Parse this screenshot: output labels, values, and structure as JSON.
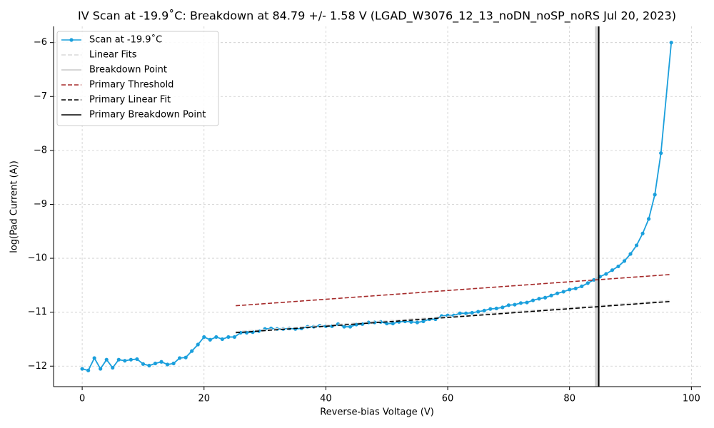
{
  "chart_data": {
    "type": "line",
    "title": "IV Scan at -19.9˚C: Breakdown at 84.79 +/- 1.58 V (LGAD_W3076_12_13_noDN_noSP_noRS Jul 20, 2023)",
    "x_label": "Reverse-bias Voltage (V)",
    "y_label": "log(Pad Current (A))",
    "xlim": [
      -4.7,
      101.6
    ],
    "ylim": [
      -12.38,
      -5.7
    ],
    "xticks": [
      0,
      20,
      40,
      60,
      80,
      100
    ],
    "yticks": [
      {
        "value": -12,
        "label": "−12"
      },
      {
        "value": -11,
        "label": "−11"
      },
      {
        "value": -10,
        "label": "−10"
      },
      {
        "value": -9,
        "label": "−9"
      },
      {
        "value": -8,
        "label": "−8"
      },
      {
        "value": -7,
        "label": "−7"
      },
      {
        "value": -6,
        "label": "−6"
      }
    ],
    "grid": true,
    "legend": "upper left",
    "series": [
      {
        "name": "Scan at -19.9˚C",
        "color": "#1a9fdc",
        "style": "line-marker",
        "x": [
          0,
          1,
          2,
          3,
          4,
          5,
          6,
          7,
          8,
          9,
          10,
          11,
          12,
          13,
          14,
          15,
          16,
          17,
          18,
          19,
          20,
          21,
          22,
          23,
          24,
          25,
          26,
          27,
          28,
          29,
          30,
          31,
          32,
          33,
          34,
          35,
          36,
          37,
          38,
          39,
          40,
          41,
          42,
          43,
          44,
          45,
          46,
          47,
          48,
          49,
          50,
          51,
          52,
          53,
          54,
          55,
          56,
          57,
          58,
          59,
          60,
          61,
          62,
          63,
          64,
          65,
          66,
          67,
          68,
          69,
          70,
          71,
          72,
          73,
          74,
          75,
          76,
          77,
          78,
          79,
          80,
          81,
          82,
          83,
          84,
          85,
          86,
          87,
          88,
          89,
          90,
          91,
          92,
          93,
          94,
          95,
          96.7
        ],
        "values": [
          -12.05,
          -12.08,
          -11.85,
          -12.05,
          -11.88,
          -12.03,
          -11.88,
          -11.9,
          -11.88,
          -11.87,
          -11.96,
          -11.99,
          -11.95,
          -11.92,
          -11.97,
          -11.95,
          -11.85,
          -11.84,
          -11.72,
          -11.6,
          -11.46,
          -11.51,
          -11.46,
          -11.5,
          -11.46,
          -11.46,
          -11.38,
          -11.38,
          -11.37,
          -11.35,
          -11.31,
          -11.3,
          -11.31,
          -11.31,
          -11.3,
          -11.31,
          -11.3,
          -11.27,
          -11.27,
          -11.25,
          -11.26,
          -11.26,
          -11.22,
          -11.27,
          -11.27,
          -11.23,
          -11.22,
          -11.19,
          -11.19,
          -11.18,
          -11.21,
          -11.21,
          -11.18,
          -11.17,
          -11.18,
          -11.19,
          -11.17,
          -11.13,
          -11.13,
          -11.07,
          -11.06,
          -11.06,
          -11.02,
          -11.02,
          -11.01,
          -10.99,
          -10.97,
          -10.94,
          -10.93,
          -10.91,
          -10.87,
          -10.86,
          -10.83,
          -10.82,
          -10.78,
          -10.75,
          -10.73,
          -10.69,
          -10.65,
          -10.62,
          -10.58,
          -10.56,
          -10.52,
          -10.46,
          -10.4,
          -10.34,
          -10.29,
          -10.22,
          -10.15,
          -10.05,
          -9.92,
          -9.76,
          -9.54,
          -9.27,
          -8.82,
          -8.05,
          -6.0
        ]
      },
      {
        "name": "Linear Fits",
        "color": "#d8d8d8",
        "style": "dashed",
        "x": [
          25.2,
          96.7
        ],
        "values": [
          -11.36,
          -10.78
        ]
      },
      {
        "name": "Breakdown Point",
        "color": "#c8c8c8",
        "style": "vline",
        "xvalue": 84.5
      },
      {
        "name": "Primary Threshold",
        "color": "#a52a2a",
        "style": "dashed",
        "x": [
          25.2,
          96.7
        ],
        "values": [
          -10.88,
          -10.3
        ]
      },
      {
        "name": "Primary Linear Fit",
        "color": "#000000",
        "style": "dashed",
        "x": [
          25.2,
          96.7
        ],
        "values": [
          -11.38,
          -10.8
        ]
      },
      {
        "name": "Primary Breakdown Point",
        "color": "#000000",
        "style": "vline",
        "xvalue": 84.79
      }
    ]
  }
}
